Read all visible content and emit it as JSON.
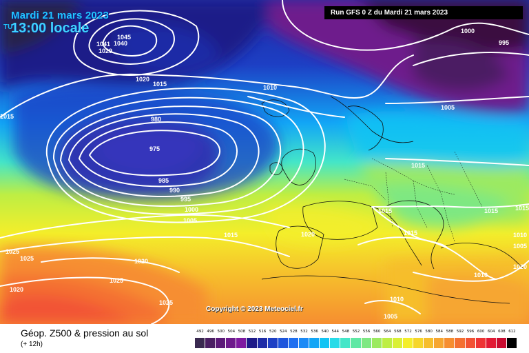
{
  "header": {
    "date_line": "Mardi 21 mars 2023",
    "time_line": "13:00 locale",
    "tu_mark": "TU",
    "run_info": "Run GFS 0 Z du Mardi 21 mars 2023"
  },
  "copyright": "Copyright © 2023 Meteociel.fr",
  "footer": {
    "title": "Géop. Z500 & pression au sol",
    "subtitle": "(+ 12h)"
  },
  "legend": {
    "values": [
      "492",
      "496",
      "500",
      "504",
      "508",
      "512",
      "516",
      "520",
      "524",
      "528",
      "532",
      "536",
      "540",
      "544",
      "548",
      "552",
      "556",
      "560",
      "564",
      "568",
      "572",
      "576",
      "580",
      "584",
      "588",
      "592",
      "596",
      "600",
      "604",
      "608",
      "612"
    ],
    "colors": [
      "#3a2a50",
      "#4b1f63",
      "#5c1a78",
      "#6e1a8c",
      "#7e1aa0",
      "#1d1a88",
      "#1d2ba6",
      "#1d3fc4",
      "#1d55dc",
      "#1f6ff0",
      "#1c8af6",
      "#12a6f6",
      "#12c4f4",
      "#27dbe8",
      "#44e6c8",
      "#5ee8a4",
      "#7ee882",
      "#9cea60",
      "#bdee44",
      "#daf036",
      "#f4ee2a",
      "#f6d62a",
      "#f6be2c",
      "#f6a630",
      "#f68e30",
      "#f47032",
      "#f25234",
      "#ee3434",
      "#e21a34",
      "#c80c30",
      "#000000"
    ]
  },
  "isobar_labels": [
    "1045",
    "1041",
    "1040",
    "1029",
    "1020",
    "1015",
    "1015",
    "980",
    "975",
    "985",
    "990",
    "995",
    "1000",
    "1005",
    "1010",
    "1015",
    "1020",
    "1025",
    "1025",
    "1020",
    "1020",
    "1025",
    "1025",
    "1015",
    "1015",
    "1010",
    "1005",
    "1005",
    "1000",
    "995",
    "1015",
    "1015",
    "1015",
    "1010",
    "1010",
    "1005",
    "1020"
  ]
}
